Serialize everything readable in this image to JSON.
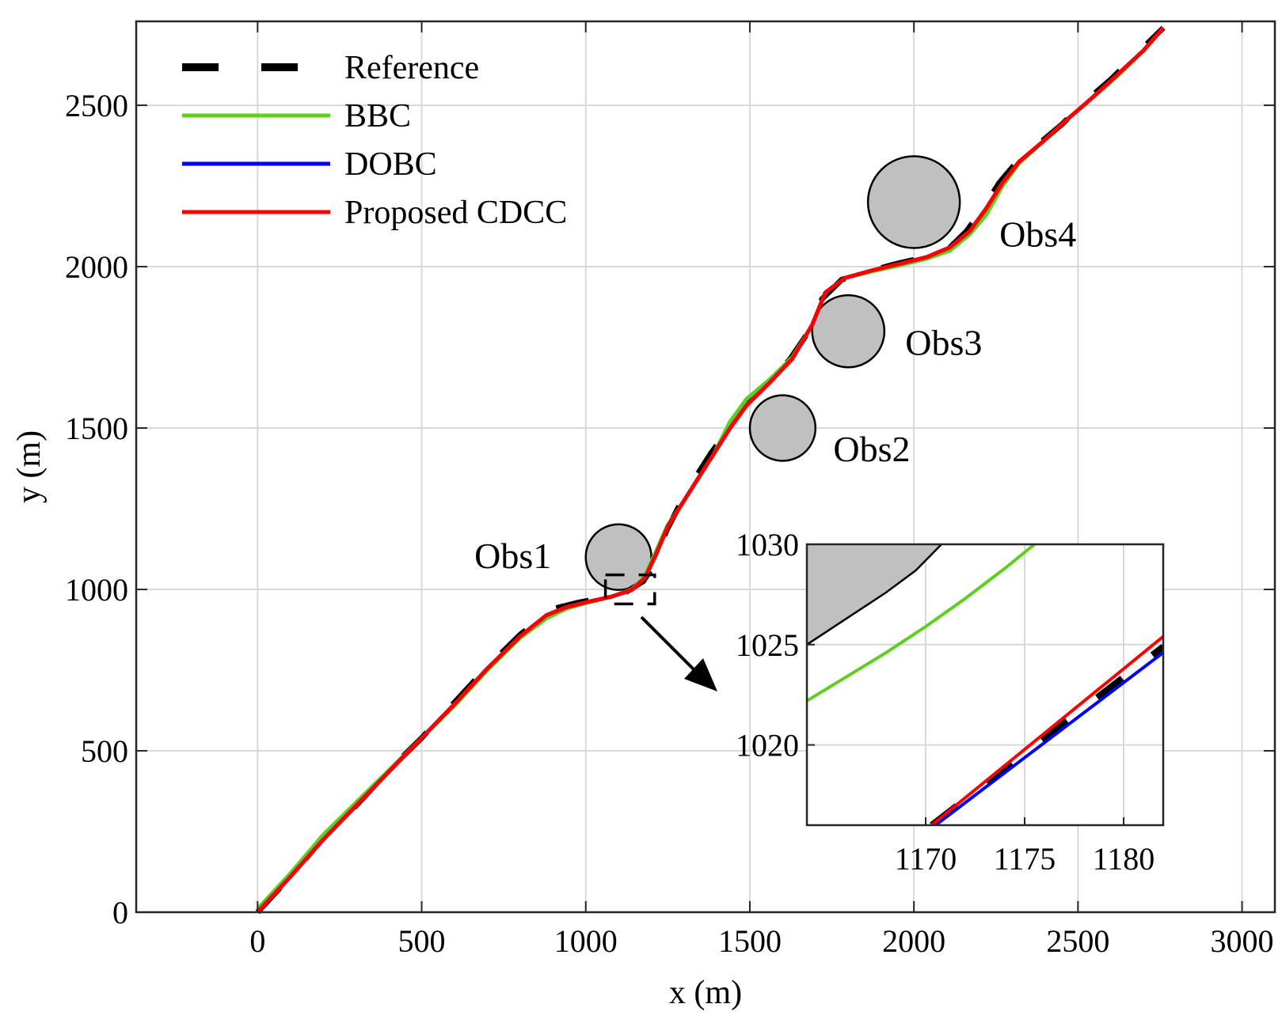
{
  "chart_data": {
    "type": "line",
    "xlabel": "x (m)",
    "ylabel": "y (m)",
    "xlim": [
      -370,
      3100
    ],
    "ylim": [
      0,
      2760
    ],
    "xticks": [
      0,
      500,
      1000,
      1500,
      2000,
      2500,
      3000
    ],
    "yticks": [
      0,
      500,
      1000,
      1500,
      2000,
      2500
    ],
    "grid": true,
    "legend_position": "top-left",
    "series": [
      {
        "name": "Reference",
        "color": "#000000",
        "style": "dashed",
        "points": [
          [
            0,
            0
          ],
          [
            100,
            110
          ],
          [
            200,
            230
          ],
          [
            300,
            330
          ],
          [
            400,
            440
          ],
          [
            500,
            540
          ],
          [
            600,
            650
          ],
          [
            700,
            760
          ],
          [
            800,
            860
          ],
          [
            900,
            940
          ],
          [
            980,
            960
          ],
          [
            1060,
            975
          ],
          [
            1120,
            990
          ],
          [
            1175,
            1025
          ],
          [
            1210,
            1080
          ],
          [
            1245,
            1180
          ],
          [
            1280,
            1250
          ],
          [
            1330,
            1340
          ],
          [
            1380,
            1420
          ],
          [
            1430,
            1490
          ],
          [
            1480,
            1570
          ],
          [
            1550,
            1640
          ],
          [
            1620,
            1710
          ],
          [
            1680,
            1800
          ],
          [
            1720,
            1900
          ],
          [
            1780,
            1960
          ],
          [
            1860,
            1985
          ],
          [
            1950,
            2010
          ],
          [
            2040,
            2030
          ],
          [
            2110,
            2060
          ],
          [
            2160,
            2110
          ],
          [
            2210,
            2180
          ],
          [
            2260,
            2260
          ],
          [
            2310,
            2320
          ],
          [
            2380,
            2380
          ],
          [
            2450,
            2440
          ],
          [
            2520,
            2510
          ],
          [
            2600,
            2580
          ],
          [
            2680,
            2660
          ],
          [
            2760,
            2740
          ]
        ]
      },
      {
        "name": "BBC",
        "color": "#5fcf1f",
        "style": "solid",
        "points": [
          [
            0,
            10
          ],
          [
            100,
            120
          ],
          [
            200,
            240
          ],
          [
            300,
            340
          ],
          [
            400,
            440
          ],
          [
            500,
            540
          ],
          [
            600,
            640
          ],
          [
            700,
            750
          ],
          [
            800,
            850
          ],
          [
            880,
            910
          ],
          [
            940,
            940
          ],
          [
            1000,
            958
          ],
          [
            1080,
            978
          ],
          [
            1140,
            1000
          ],
          [
            1180,
            1040
          ],
          [
            1215,
            1120
          ],
          [
            1250,
            1200
          ],
          [
            1290,
            1260
          ],
          [
            1340,
            1340
          ],
          [
            1390,
            1420
          ],
          [
            1440,
            1520
          ],
          [
            1490,
            1590
          ],
          [
            1560,
            1650
          ],
          [
            1630,
            1720
          ],
          [
            1690,
            1820
          ],
          [
            1730,
            1920
          ],
          [
            1790,
            1965
          ],
          [
            1870,
            1985
          ],
          [
            1960,
            2005
          ],
          [
            2040,
            2025
          ],
          [
            2110,
            2050
          ],
          [
            2170,
            2100
          ],
          [
            2220,
            2160
          ],
          [
            2270,
            2250
          ],
          [
            2320,
            2320
          ],
          [
            2390,
            2385
          ],
          [
            2460,
            2450
          ],
          [
            2540,
            2520
          ],
          [
            2620,
            2590
          ],
          [
            2700,
            2670
          ],
          [
            2760,
            2740
          ]
        ]
      },
      {
        "name": "DOBC",
        "color": "#0000ff",
        "style": "solid",
        "points": [
          [
            0,
            0
          ],
          [
            100,
            110
          ],
          [
            200,
            225
          ],
          [
            300,
            330
          ],
          [
            400,
            435
          ],
          [
            500,
            540
          ],
          [
            600,
            645
          ],
          [
            700,
            755
          ],
          [
            800,
            855
          ],
          [
            880,
            920
          ],
          [
            940,
            945
          ],
          [
            1000,
            960
          ],
          [
            1080,
            978
          ],
          [
            1140,
            998
          ],
          [
            1180,
            1035
          ],
          [
            1215,
            1110
          ],
          [
            1250,
            1195
          ],
          [
            1290,
            1260
          ],
          [
            1340,
            1340
          ],
          [
            1390,
            1420
          ],
          [
            1440,
            1500
          ],
          [
            1490,
            1570
          ],
          [
            1560,
            1640
          ],
          [
            1630,
            1715
          ],
          [
            1690,
            1820
          ],
          [
            1730,
            1920
          ],
          [
            1790,
            1965
          ],
          [
            1870,
            1988
          ],
          [
            1960,
            2010
          ],
          [
            2040,
            2030
          ],
          [
            2110,
            2060
          ],
          [
            2170,
            2110
          ],
          [
            2220,
            2180
          ],
          [
            2270,
            2260
          ],
          [
            2320,
            2325
          ],
          [
            2390,
            2385
          ],
          [
            2460,
            2450
          ],
          [
            2540,
            2520
          ],
          [
            2620,
            2595
          ],
          [
            2700,
            2670
          ],
          [
            2760,
            2740
          ]
        ]
      },
      {
        "name": "Proposed CDCC",
        "color": "#ff0000",
        "style": "solid",
        "points": [
          [
            0,
            0
          ],
          [
            100,
            110
          ],
          [
            200,
            225
          ],
          [
            300,
            330
          ],
          [
            400,
            435
          ],
          [
            500,
            540
          ],
          [
            600,
            645
          ],
          [
            700,
            755
          ],
          [
            800,
            855
          ],
          [
            880,
            920
          ],
          [
            940,
            945
          ],
          [
            1000,
            960
          ],
          [
            1080,
            978
          ],
          [
            1140,
            998
          ],
          [
            1180,
            1035
          ],
          [
            1215,
            1110
          ],
          [
            1250,
            1195
          ],
          [
            1290,
            1260
          ],
          [
            1340,
            1340
          ],
          [
            1390,
            1420
          ],
          [
            1440,
            1500
          ],
          [
            1490,
            1570
          ],
          [
            1560,
            1640
          ],
          [
            1630,
            1715
          ],
          [
            1690,
            1820
          ],
          [
            1730,
            1920
          ],
          [
            1790,
            1965
          ],
          [
            1870,
            1988
          ],
          [
            1960,
            2010
          ],
          [
            2040,
            2030
          ],
          [
            2110,
            2060
          ],
          [
            2170,
            2110
          ],
          [
            2220,
            2180
          ],
          [
            2270,
            2260
          ],
          [
            2320,
            2325
          ],
          [
            2390,
            2385
          ],
          [
            2460,
            2450
          ],
          [
            2540,
            2520
          ],
          [
            2620,
            2595
          ],
          [
            2700,
            2670
          ],
          [
            2760,
            2740
          ]
        ]
      }
    ],
    "obstacles": [
      {
        "label": "Obs1",
        "cx": 1100,
        "cy": 1100,
        "r": 100
      },
      {
        "label": "Obs2",
        "cx": 1600,
        "cy": 1500,
        "r": 100
      },
      {
        "label": "Obs3",
        "cx": 1800,
        "cy": 1800,
        "r": 110
      },
      {
        "label": "Obs4",
        "cx": 2000,
        "cy": 2200,
        "r": 140
      }
    ],
    "zoom_box": {
      "x": [
        1060,
        1210
      ],
      "y": [
        955,
        1045
      ]
    },
    "inset": {
      "xlim": [
        1164,
        1182
      ],
      "ylim": [
        1016,
        1030
      ],
      "xticks": [
        1170,
        1175,
        1180
      ],
      "yticks": [
        1020,
        1025,
        1030
      ],
      "series": [
        {
          "name": "Reference",
          "points": [
            [
              1170.3,
              1016
            ],
            [
              1182,
              1024.9
            ]
          ]
        },
        {
          "name": "BBC",
          "points": [
            [
              1164,
              1022.2
            ],
            [
              1166,
              1023.4
            ],
            [
              1168,
              1024.6
            ],
            [
              1170,
              1025.9
            ],
            [
              1172,
              1027.3
            ],
            [
              1174,
              1028.8
            ],
            [
              1175.5,
              1030
            ]
          ]
        },
        {
          "name": "DOBC",
          "points": [
            [
              1170.5,
              1016
            ],
            [
              1182,
              1024.6
            ]
          ]
        },
        {
          "name": "Proposed CDCC",
          "points": [
            [
              1170.3,
              1016
            ],
            [
              1182,
              1025.4
            ]
          ]
        }
      ],
      "obstacle_edge": [
        [
          1164,
          1025
        ],
        [
          1166,
          1026.3
        ],
        [
          1168,
          1027.6
        ],
        [
          1169.5,
          1028.7
        ],
        [
          1170.8,
          1030
        ]
      ]
    }
  }
}
